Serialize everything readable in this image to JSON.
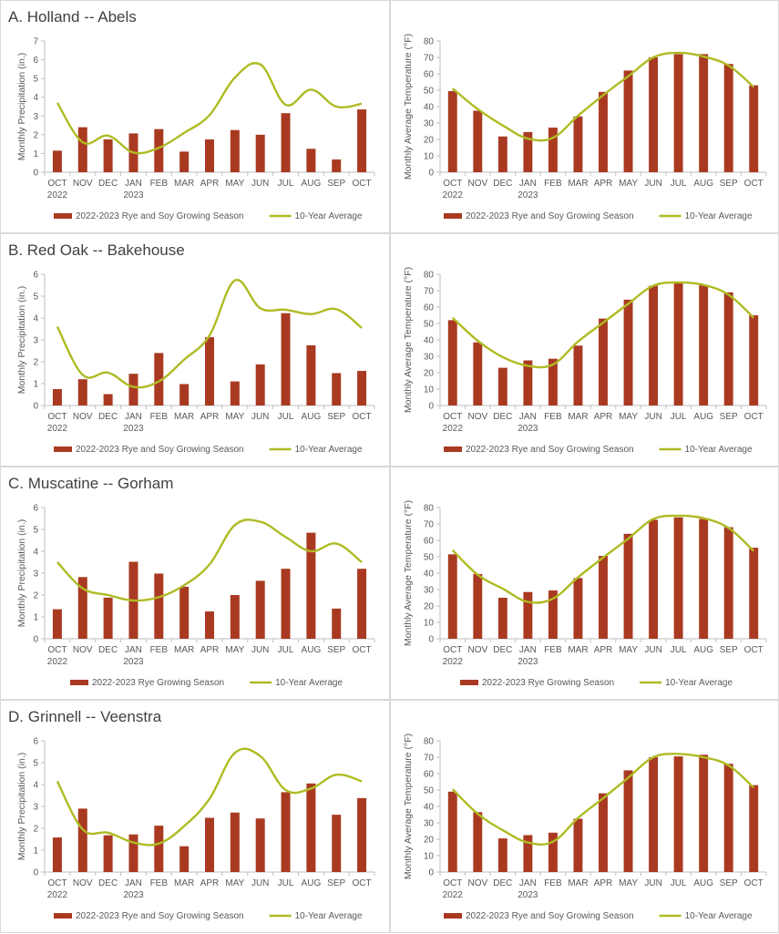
{
  "months": [
    "OCT",
    "NOV",
    "DEC",
    "JAN",
    "FEB",
    "MAR",
    "APR",
    "MAY",
    "JUN",
    "JUL",
    "AUG",
    "SEP",
    "OCT"
  ],
  "colors": {
    "bar": "#A93A21",
    "line": "#AFBB23",
    "axis": "#bfbfbf",
    "text": "#595959",
    "border": "#d9d9d9"
  },
  "chart_data": [
    {
      "type": "bar",
      "title": "A. Holland -- Abels",
      "categories": [
        "OCT 2022",
        "NOV",
        "DEC",
        "JAN 2023",
        "FEB",
        "MAR",
        "APR",
        "MAY",
        "JUN",
        "JUL",
        "AUG",
        "SEP",
        "OCT"
      ],
      "ylabel": "Monthly Precipitation (in.)",
      "ylim": [
        0,
        7
      ],
      "yticks": [
        0,
        1,
        2,
        3,
        4,
        5,
        6,
        7
      ],
      "series": [
        {
          "name": "2022-2023 Rye and Soy Growing Season",
          "kind": "bar",
          "values": [
            1.15,
            2.4,
            1.75,
            2.07,
            2.3,
            1.1,
            1.75,
            2.25,
            2.0,
            3.15,
            1.25,
            0.68,
            3.35
          ]
        },
        {
          "name": "10-Year Average",
          "kind": "line",
          "values": [
            3.7,
            1.6,
            1.95,
            1.05,
            1.3,
            2.1,
            3.05,
            5.05,
            5.75,
            3.6,
            4.4,
            3.5,
            3.65
          ]
        }
      ],
      "legend": "bottom"
    },
    {
      "type": "bar",
      "title": "",
      "categories": [
        "OCT 2022",
        "NOV",
        "DEC",
        "JAN 2023",
        "FEB",
        "MAR",
        "APR",
        "MAY",
        "JUN",
        "JUL",
        "AUG",
        "SEP",
        "OCT"
      ],
      "ylabel": "Monthly Average Temperature (°F)",
      "ylim": [
        0,
        80
      ],
      "yticks": [
        0,
        10,
        20,
        30,
        40,
        50,
        60,
        70,
        80
      ],
      "series": [
        {
          "name": "2022-2023 Rye and Soy Growing Season",
          "kind": "bar",
          "values": [
            49.5,
            37.5,
            21.8,
            24.5,
            27.2,
            34,
            49,
            62,
            70,
            72,
            72,
            66,
            53
          ]
        },
        {
          "name": "10-Year Average",
          "kind": "line",
          "values": [
            51,
            38.5,
            28.5,
            20.5,
            21,
            34.5,
            47,
            58.5,
            70,
            72.8,
            70.5,
            65,
            52
          ]
        }
      ],
      "legend": "bottom"
    },
    {
      "type": "bar",
      "title": "B. Red Oak -- Bakehouse",
      "categories": [
        "OCT 2022",
        "NOV",
        "DEC",
        "JAN 2023",
        "FEB",
        "MAR",
        "APR",
        "MAY",
        "JUN",
        "JUL",
        "AUG",
        "SEP",
        "OCT"
      ],
      "ylabel": "Monthly Precipitation (in.)",
      "ylim": [
        0,
        6
      ],
      "yticks": [
        0,
        1,
        2,
        3,
        4,
        5,
        6
      ],
      "series": [
        {
          "name": "2022-2023 Rye and Soy Growing Season",
          "kind": "bar",
          "values": [
            0.75,
            1.2,
            0.52,
            1.45,
            2.4,
            0.98,
            3.12,
            1.1,
            1.88,
            4.22,
            2.75,
            1.48,
            1.58
          ]
        },
        {
          "name": "10-Year Average",
          "kind": "line",
          "values": [
            3.6,
            1.4,
            1.5,
            0.85,
            1.1,
            2.1,
            3.2,
            5.72,
            4.45,
            4.38,
            4.18,
            4.4,
            3.55
          ]
        }
      ],
      "legend": "bottom"
    },
    {
      "type": "bar",
      "title": "",
      "categories": [
        "OCT 2022",
        "NOV",
        "DEC",
        "JAN 2023",
        "FEB",
        "MAR",
        "APR",
        "MAY",
        "JUN",
        "JUL",
        "AUG",
        "SEP",
        "OCT"
      ],
      "ylabel": "Monthly Average Temperature (°F)",
      "ylim": [
        0,
        80
      ],
      "yticks": [
        0,
        10,
        20,
        30,
        40,
        50,
        60,
        70,
        80
      ],
      "series": [
        {
          "name": "2022-2023 Rye and Soy Growing Season",
          "kind": "bar",
          "values": [
            52,
            38.5,
            23,
            27.5,
            28.5,
            36.5,
            53,
            64.5,
            73,
            74.5,
            73.5,
            69,
            55
          ]
        },
        {
          "name": "10-Year Average",
          "kind": "line",
          "values": [
            53.5,
            39.5,
            29.5,
            24.2,
            25,
            39,
            50.5,
            62,
            73,
            75,
            73.5,
            67.5,
            53.5
          ]
        }
      ],
      "legend": "bottom"
    },
    {
      "type": "bar",
      "title": "C. Muscatine -- Gorham",
      "categories": [
        "OCT 2022",
        "NOV",
        "DEC",
        "JAN 2023",
        "FEB",
        "MAR",
        "APR",
        "MAY",
        "JUN",
        "JUL",
        "AUG",
        "SEP",
        "OCT"
      ],
      "ylabel": "Monthly Precipitation (in.)",
      "ylim": [
        0,
        6
      ],
      "yticks": [
        0,
        1,
        2,
        3,
        4,
        5,
        6
      ],
      "series": [
        {
          "name": "2022-2023 Rye Growing Season",
          "kind": "bar",
          "values": [
            1.35,
            2.82,
            1.88,
            3.52,
            2.98,
            2.38,
            1.25,
            2.0,
            2.65,
            3.2,
            4.85,
            1.38,
            3.2
          ]
        },
        {
          "name": "10-Year Average",
          "kind": "line",
          "values": [
            3.5,
            2.3,
            2.0,
            1.75,
            1.9,
            2.45,
            3.4,
            5.2,
            5.35,
            4.65,
            4.0,
            4.35,
            3.5
          ]
        }
      ],
      "legend": "bottom"
    },
    {
      "type": "bar",
      "title": "",
      "categories": [
        "OCT 2022",
        "NOV",
        "DEC",
        "JAN 2023",
        "FEB",
        "MAR",
        "APR",
        "MAY",
        "JUN",
        "JUL",
        "AUG",
        "SEP",
        "OCT"
      ],
      "ylabel": "Monthly Average Temperature (°F)",
      "ylim": [
        0,
        80
      ],
      "yticks": [
        0,
        10,
        20,
        30,
        40,
        50,
        60,
        70,
        80
      ],
      "series": [
        {
          "name": "2022-2023 Rye Growing Season",
          "kind": "bar",
          "values": [
            51.5,
            39.5,
            25,
            28.5,
            29.5,
            37,
            50.5,
            64,
            72.5,
            74,
            73,
            68,
            55.5
          ]
        },
        {
          "name": "10-Year Average",
          "kind": "line",
          "values": [
            54,
            39,
            30.5,
            22.5,
            24.5,
            37.5,
            49.5,
            61,
            73,
            75,
            73.5,
            67.5,
            53.5
          ]
        }
      ],
      "legend": "bottom"
    },
    {
      "type": "bar",
      "title": "D. Grinnell -- Veenstra",
      "categories": [
        "OCT 2022",
        "NOV",
        "DEC",
        "JAN 2023",
        "FEB",
        "MAR",
        "APR",
        "MAY",
        "JUN",
        "JUL",
        "AUG",
        "SEP",
        "OCT"
      ],
      "ylabel": "Monthly Precipitation (in.)",
      "ylim": [
        0,
        6
      ],
      "yticks": [
        0,
        1,
        2,
        3,
        4,
        5,
        6
      ],
      "series": [
        {
          "name": "2022-2023 Rye and Soy Growing Season",
          "kind": "bar",
          "values": [
            1.58,
            2.9,
            1.68,
            1.72,
            2.12,
            1.18,
            2.48,
            2.72,
            2.45,
            3.65,
            4.05,
            2.62,
            3.38
          ]
        },
        {
          "name": "10-Year Average",
          "kind": "line",
          "values": [
            4.15,
            1.95,
            1.8,
            1.35,
            1.3,
            2.1,
            3.35,
            5.45,
            5.3,
            3.75,
            3.82,
            4.45,
            4.15
          ]
        }
      ],
      "legend": "bottom"
    },
    {
      "type": "bar",
      "title": "",
      "categories": [
        "OCT 2022",
        "NOV",
        "DEC",
        "JAN 2023",
        "FEB",
        "MAR",
        "APR",
        "MAY",
        "JUN",
        "JUL",
        "AUG",
        "SEP",
        "OCT"
      ],
      "ylabel": "Monthly Average Temperature (°F)",
      "ylim": [
        0,
        80
      ],
      "yticks": [
        0,
        10,
        20,
        30,
        40,
        50,
        60,
        70,
        80
      ],
      "series": [
        {
          "name": "2022-2023 Rye and Soy Growing Season",
          "kind": "bar",
          "values": [
            49,
            36.5,
            20.5,
            22.5,
            24,
            32.5,
            48,
            62,
            70,
            70.5,
            71.5,
            66,
            53
          ]
        },
        {
          "name": "10-Year Average",
          "kind": "line",
          "values": [
            50.5,
            35.5,
            25.5,
            18,
            18.5,
            33,
            45,
            57.5,
            70,
            72,
            70,
            65,
            51.5
          ]
        }
      ],
      "legend": "bottom"
    }
  ]
}
